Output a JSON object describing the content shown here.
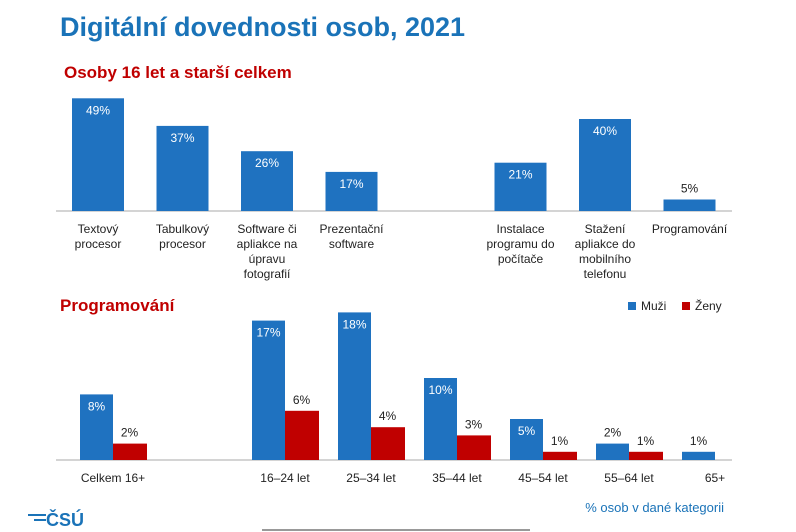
{
  "title": "Digitální dovednosti osob, 2021",
  "footnote": "% osob v dané kategorii",
  "logo": "ČSÚ",
  "chart_data": [
    {
      "type": "bar",
      "title": "Osoby 16 let a starší celkem",
      "categories": [
        [
          "Textový",
          "procesor"
        ],
        [
          "Tabulkový",
          "procesor"
        ],
        [
          "Software či",
          "apliakce na",
          "úpravu",
          "fotografií"
        ],
        [
          "Prezentační",
          "software"
        ],
        null,
        [
          "Instalace",
          "programu do",
          "počítače"
        ],
        [
          "Stažení",
          "apliakce do",
          "mobilního",
          "telefonu"
        ],
        [
          "Programování"
        ]
      ],
      "values": [
        49,
        37,
        26,
        17,
        null,
        21,
        40,
        5
      ],
      "value_labels": [
        "49%",
        "37%",
        "26%",
        "17%",
        null,
        "21%",
        "40%",
        "5%"
      ],
      "color": "#1f72c0"
    },
    {
      "type": "grouped_bar",
      "title": "Programování",
      "categories": [
        "Celkem 16+",
        null,
        "16–24 let",
        "25–34 let",
        "35–44 let",
        "45–54 let",
        "55–64 let",
        "65+"
      ],
      "series": [
        {
          "name": "Muži",
          "color": "#1f72c0",
          "values": [
            8,
            null,
            17,
            18,
            10,
            5,
            2,
            1
          ],
          "value_labels": [
            "8%",
            null,
            "17%",
            "18%",
            "10%",
            "5%",
            "2%",
            "1%"
          ]
        },
        {
          "name": "Ženy",
          "color": "#c00000",
          "values": [
            2,
            null,
            6,
            4,
            3,
            1,
            1,
            null
          ],
          "value_labels": [
            "2%",
            null,
            "6%",
            "4%",
            "3%",
            "1%",
            "1%",
            null
          ]
        }
      ],
      "legend": "top-right"
    }
  ]
}
